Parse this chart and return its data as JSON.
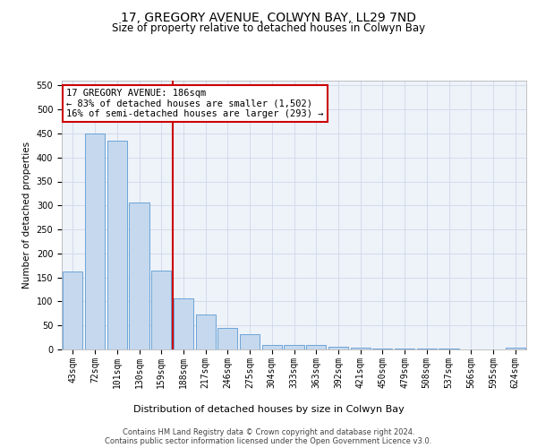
{
  "title": "17, GREGORY AVENUE, COLWYN BAY, LL29 7ND",
  "subtitle": "Size of property relative to detached houses in Colwyn Bay",
  "xlabel": "Distribution of detached houses by size in Colwyn Bay",
  "ylabel": "Number of detached properties",
  "categories": [
    "43sqm",
    "72sqm",
    "101sqm",
    "130sqm",
    "159sqm",
    "188sqm",
    "217sqm",
    "246sqm",
    "275sqm",
    "304sqm",
    "333sqm",
    "363sqm",
    "392sqm",
    "421sqm",
    "450sqm",
    "479sqm",
    "508sqm",
    "537sqm",
    "566sqm",
    "595sqm",
    "624sqm"
  ],
  "values": [
    163,
    450,
    435,
    307,
    165,
    107,
    73,
    44,
    32,
    10,
    10,
    9,
    5,
    3,
    1,
    1,
    1,
    1,
    0,
    0,
    4
  ],
  "bar_color": "#c5d8ed",
  "bar_edge_color": "#5b9bd5",
  "vline_x_index": 5,
  "vline_color": "#cc0000",
  "annotation_line1": "17 GREGORY AVENUE: 186sqm",
  "annotation_line2": "← 83% of detached houses are smaller (1,502)",
  "annotation_line3": "16% of semi-detached houses are larger (293) →",
  "annotation_box_color": "#ffffff",
  "annotation_box_edge_color": "#cc0000",
  "ylim": [
    0,
    560
  ],
  "yticks": [
    0,
    50,
    100,
    150,
    200,
    250,
    300,
    350,
    400,
    450,
    500,
    550
  ],
  "footer_text": "Contains HM Land Registry data © Crown copyright and database right 2024.\nContains public sector information licensed under the Open Government Licence v3.0.",
  "grid_color": "#d0d8e8",
  "background_color": "#eef2f9",
  "title_fontsize": 10,
  "subtitle_fontsize": 8.5,
  "tick_fontsize": 7,
  "ylabel_fontsize": 7.5,
  "xlabel_fontsize": 8,
  "footer_fontsize": 6,
  "annotation_fontsize": 7.5
}
